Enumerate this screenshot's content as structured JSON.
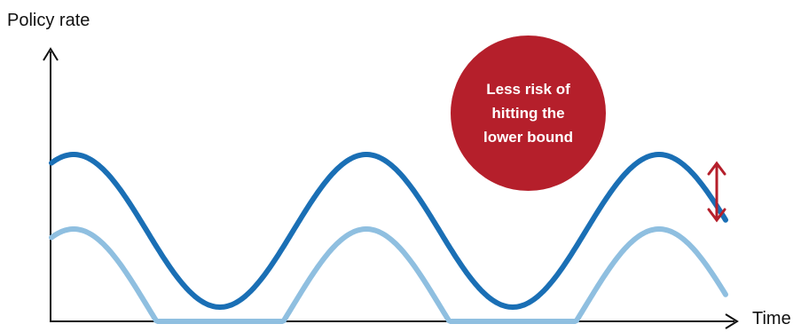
{
  "axes": {
    "y_label": "Policy rate",
    "x_label": "Time"
  },
  "callout": {
    "text": "Less risk of hitting the lower bound"
  },
  "colors": {
    "higher_rate_line": "#1a6fb5",
    "lower_rate_line": "#8fbfe0",
    "callout_fill": "#b51f2b",
    "gap_arrow": "#b51f2b",
    "axis": "#111111"
  },
  "series": {
    "higher": {
      "shape": "smooth cosine-like cycle, two troughs, never reaches the lower bound"
    },
    "lower": {
      "shape": "same cycle shifted down, clipped flat at the lower bound in both troughs"
    }
  }
}
